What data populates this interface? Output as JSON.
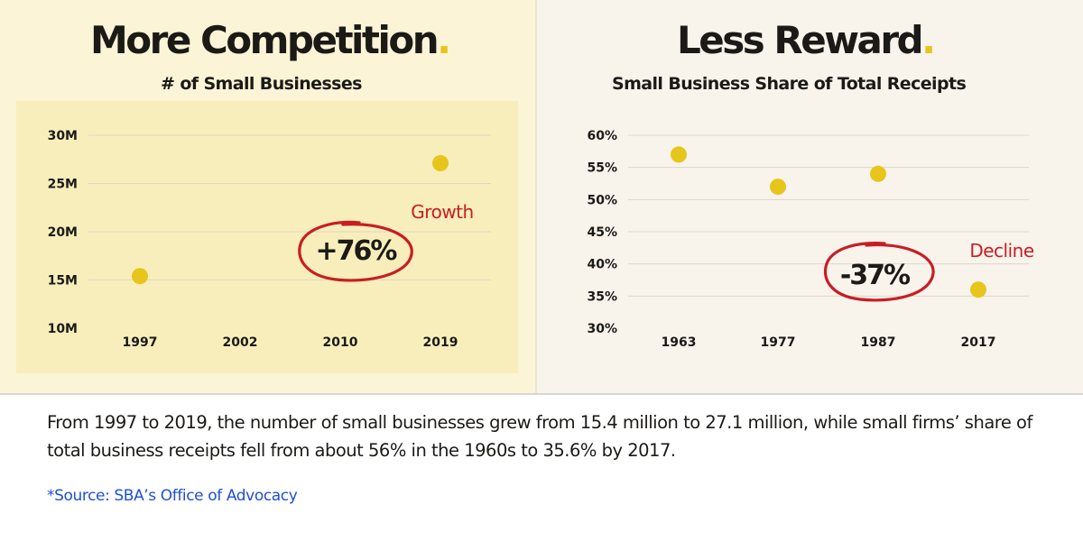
{
  "colors": {
    "point": "#e8c51a",
    "annotation_red": "#c81d25",
    "text": "#1c1a17",
    "grid": "#dcd7c8",
    "source_link": "#1e4fd6"
  },
  "left": {
    "title": "More Competition",
    "title_dot": ".",
    "subtitle": "# of Small Businesses",
    "change_label": "+76%",
    "trend_label": "Growth"
  },
  "right": {
    "title": "Less Reward",
    "title_dot": ".",
    "subtitle": "Small Business Share of Total Receipts",
    "change_label": "-37%",
    "trend_label": "Decline"
  },
  "caption": "From 1997 to 2019, the number of small businesses grew from 15.4 million to 27.1 million, while small firms’ share of total business receipts fell from about 56% in the 1960s to 35.6% by 2017.",
  "source": "*Source: SBA’s Office of Advocacy",
  "chart_data": [
    {
      "type": "scatter",
      "title": "# of Small Businesses",
      "categories": [
        "1997",
        "2002",
        "2010",
        "2019"
      ],
      "series": [
        {
          "values": [
            15.4,
            null,
            null,
            27.1
          ]
        }
      ],
      "yticks": [
        "10M",
        "15M",
        "20M",
        "25M",
        "30M"
      ],
      "ylim": [
        10,
        30
      ],
      "grid": true,
      "annotations": [
        "+76%",
        "Growth"
      ]
    },
    {
      "type": "scatter",
      "title": "Small Business Share of Total Receipts",
      "categories": [
        "1963",
        "1977",
        "1987",
        "2017"
      ],
      "series": [
        {
          "values": [
            57,
            52,
            54,
            36
          ]
        }
      ],
      "yticks": [
        "30%",
        "35%",
        "40%",
        "45%",
        "50%",
        "55%",
        "60%"
      ],
      "ylim": [
        30,
        60
      ],
      "grid": true,
      "annotations": [
        "-37%",
        "Decline"
      ]
    }
  ]
}
